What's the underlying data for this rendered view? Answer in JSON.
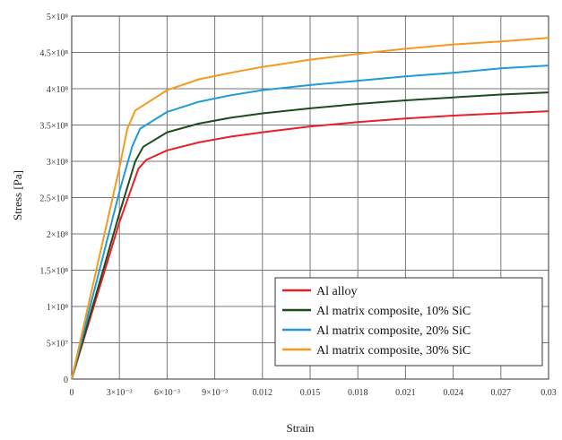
{
  "chart_data": {
    "type": "line",
    "xlabel": "Strain",
    "ylabel": "Stress [Pa]",
    "xlim": [
      0,
      0.03
    ],
    "ylim": [
      0,
      500000000
    ],
    "grid": true,
    "legend_position": "bottom-right",
    "x_ticks": [
      {
        "value": 0,
        "label": "0"
      },
      {
        "value": 0.003,
        "label": "3×10⁻³"
      },
      {
        "value": 0.006,
        "label": "6×10⁻³"
      },
      {
        "value": 0.009,
        "label": "9×10⁻³"
      },
      {
        "value": 0.012,
        "label": "0.012"
      },
      {
        "value": 0.015,
        "label": "0.015"
      },
      {
        "value": 0.018,
        "label": "0.018"
      },
      {
        "value": 0.021,
        "label": "0.021"
      },
      {
        "value": 0.024,
        "label": "0.024"
      },
      {
        "value": 0.027,
        "label": "0.027"
      },
      {
        "value": 0.03,
        "label": "0.03"
      }
    ],
    "y_ticks": [
      {
        "value": 0,
        "label": "0"
      },
      {
        "value": 50000000,
        "label": "5×10⁷"
      },
      {
        "value": 100000000,
        "label": "1×10⁸"
      },
      {
        "value": 150000000,
        "label": "1.5×10⁸"
      },
      {
        "value": 200000000,
        "label": "2×10⁸"
      },
      {
        "value": 250000000,
        "label": "2.5×10⁸"
      },
      {
        "value": 300000000,
        "label": "3×10⁸"
      },
      {
        "value": 350000000,
        "label": "3.5×10⁸"
      },
      {
        "value": 400000000,
        "label": "4×10⁸"
      },
      {
        "value": 450000000,
        "label": "4.5×10⁸"
      },
      {
        "value": 500000000,
        "label": "5×10⁸"
      }
    ],
    "series": [
      {
        "name": "Al alloy",
        "color": "#e8202a",
        "points": [
          [
            0,
            0
          ],
          [
            0.001,
            72000000
          ],
          [
            0.002,
            144000000
          ],
          [
            0.003,
            216000000
          ],
          [
            0.0042,
            290000000
          ],
          [
            0.0047,
            302000000
          ],
          [
            0.006,
            315000000
          ],
          [
            0.008,
            326000000
          ],
          [
            0.01,
            334000000
          ],
          [
            0.012,
            340000000
          ],
          [
            0.015,
            348000000
          ],
          [
            0.018,
            354000000
          ],
          [
            0.021,
            359000000
          ],
          [
            0.024,
            363000000
          ],
          [
            0.027,
            366000000
          ],
          [
            0.03,
            369000000
          ]
        ]
      },
      {
        "name": "Al matrix composite, 10% SiC",
        "color": "#1f4a1f",
        "points": [
          [
            0,
            0
          ],
          [
            0.001,
            76000000
          ],
          [
            0.002,
            152000000
          ],
          [
            0.003,
            228000000
          ],
          [
            0.004,
            300000000
          ],
          [
            0.0045,
            320000000
          ],
          [
            0.006,
            340000000
          ],
          [
            0.008,
            352000000
          ],
          [
            0.01,
            360000000
          ],
          [
            0.012,
            366000000
          ],
          [
            0.015,
            373000000
          ],
          [
            0.018,
            379000000
          ],
          [
            0.021,
            384000000
          ],
          [
            0.024,
            388000000
          ],
          [
            0.027,
            392000000
          ],
          [
            0.03,
            395000000
          ]
        ]
      },
      {
        "name": "Al matrix composite, 20% SiC",
        "color": "#1f9bd7",
        "points": [
          [
            0,
            0
          ],
          [
            0.001,
            86000000
          ],
          [
            0.002,
            172000000
          ],
          [
            0.003,
            258000000
          ],
          [
            0.0038,
            320000000
          ],
          [
            0.0043,
            345000000
          ],
          [
            0.006,
            368000000
          ],
          [
            0.008,
            382000000
          ],
          [
            0.01,
            391000000
          ],
          [
            0.012,
            398000000
          ],
          [
            0.015,
            405000000
          ],
          [
            0.018,
            411000000
          ],
          [
            0.021,
            417000000
          ],
          [
            0.024,
            422000000
          ],
          [
            0.027,
            428000000
          ],
          [
            0.03,
            432000000
          ]
        ]
      },
      {
        "name": "Al matrix composite, 30% SiC",
        "color": "#f39a1f",
        "points": [
          [
            0,
            0
          ],
          [
            0.001,
            97000000
          ],
          [
            0.002,
            194000000
          ],
          [
            0.003,
            291000000
          ],
          [
            0.0035,
            345000000
          ],
          [
            0.004,
            370000000
          ],
          [
            0.006,
            398000000
          ],
          [
            0.008,
            413000000
          ],
          [
            0.01,
            422000000
          ],
          [
            0.012,
            430000000
          ],
          [
            0.015,
            440000000
          ],
          [
            0.018,
            448000000
          ],
          [
            0.021,
            455000000
          ],
          [
            0.024,
            461000000
          ],
          [
            0.027,
            465000000
          ],
          [
            0.03,
            470000000
          ]
        ]
      }
    ]
  }
}
